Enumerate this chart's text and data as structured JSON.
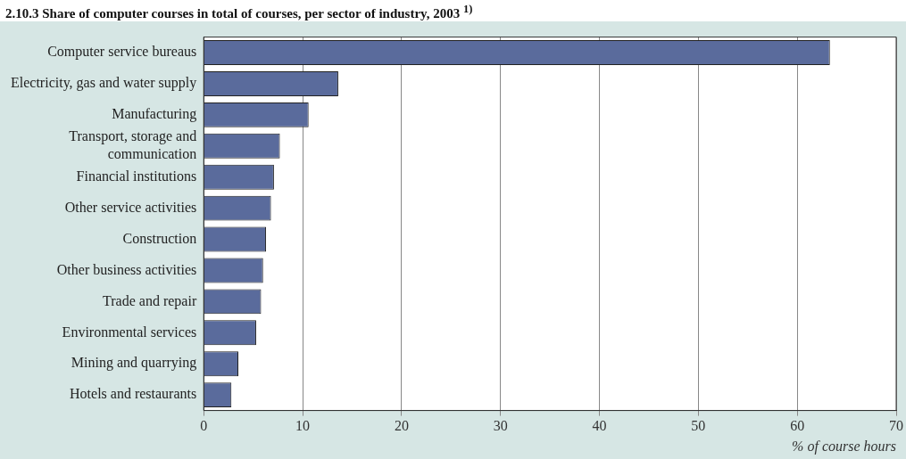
{
  "chart_data": {
    "type": "bar",
    "orientation": "horizontal",
    "title": "2.10.3 Share of computer courses in total of courses, per sector of industry, 2003 $^{1)}$",
    "xlabel": "% of course hours",
    "categories": [
      "Computer service bureaus",
      "Electricity, gas and water supply",
      "Manufacturing",
      "Transport, storage and communication",
      "Financial institutions",
      "Other service activities",
      "Construction",
      "Other business activities",
      "Trade and repair",
      "Environmental services",
      "Mining and quarrying",
      "Hotels and restaurants"
    ],
    "values": [
      63.3,
      13.6,
      10.6,
      7.7,
      7.1,
      6.8,
      6.3,
      6.0,
      5.8,
      5.3,
      3.5,
      2.8
    ],
    "color": "#5a6b9c",
    "xlim": [
      0,
      70
    ],
    "xticks": [
      0,
      10,
      20,
      30,
      40,
      50,
      60,
      70
    ],
    "grid": "x",
    "legend": false
  }
}
